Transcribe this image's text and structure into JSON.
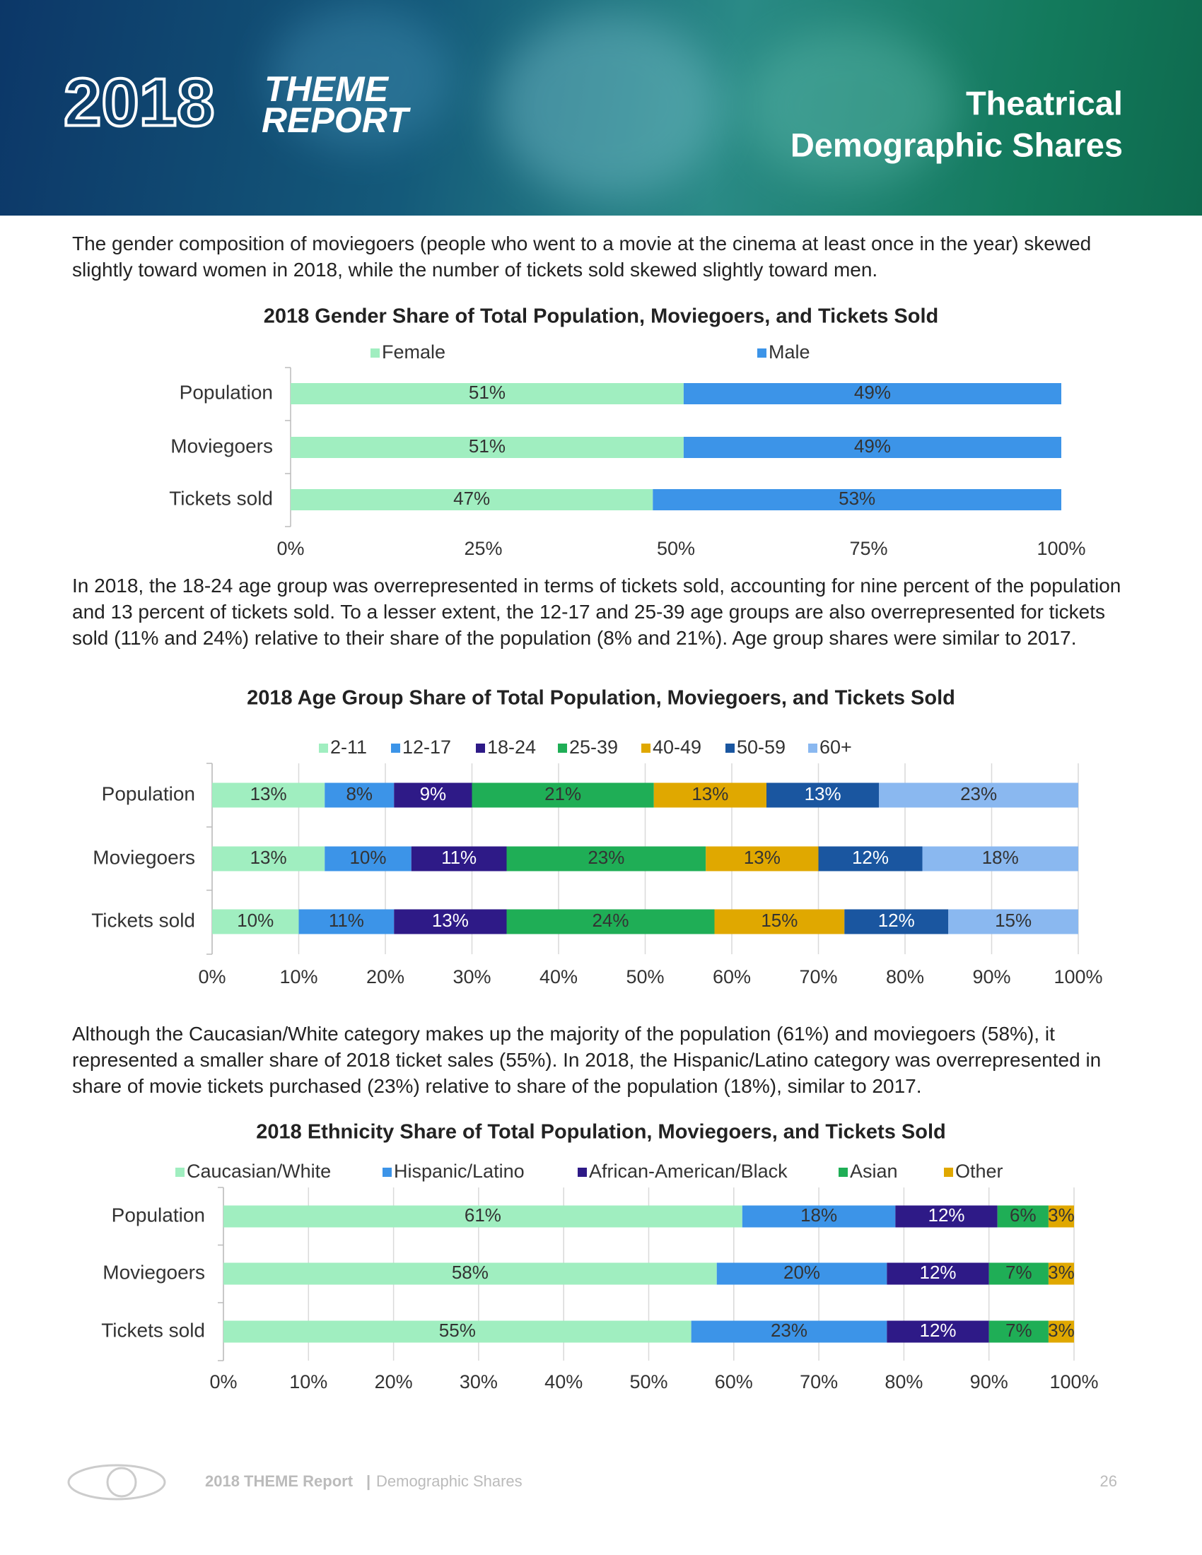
{
  "header": {
    "logo_year": "2018",
    "logo_line1": "THEME",
    "logo_line2": "REPORT",
    "title_lines": [
      "Theatrical",
      "Demographic Shares"
    ]
  },
  "paragraphs": [
    "The gender composition of moviegoers (people who went to a movie at the cinema at least once in the year) skewed slightly toward women in 2018, while the number of tickets sold skewed slightly toward men.",
    "In 2018, the 18-24 age group was overrepresented in terms of tickets sold, accounting for nine percent of the population and 13 percent of tickets sold. To a lesser extent, the 12-17 and 25-39 age groups are also overrepresented for tickets sold (11% and 24%) relative to their share of the population (8% and 21%). Age group shares were similar to 2017.",
    "Although the Caucasian/White category makes up the majority of the population (61%) and moviegoers (58%), it represented a smaller share of 2018 ticket sales (55%). In 2018, the Hispanic/Latino category was overrepresented in share of movie tickets purchased (23%) relative to share of the population (18%), similar to 2017."
  ],
  "chart_data": [
    {
      "type": "bar",
      "title": "2018 Gender Share of Total Population, Moviegoers, and Tickets Sold",
      "categories": [
        "Population",
        "Moviegoers",
        "Tickets sold"
      ],
      "series": [
        {
          "name": "Female",
          "color": "#a0eec0",
          "values": [
            51,
            51,
            47
          ],
          "value_labels": [
            "51%",
            "51%",
            "47%"
          ]
        },
        {
          "name": "Male",
          "color": "#3c94e8",
          "values": [
            49,
            49,
            53
          ],
          "value_labels": [
            "49%",
            "49%",
            "53%"
          ]
        }
      ],
      "xlim": [
        0,
        100
      ],
      "xticks": [
        {
          "value": 0,
          "label": "0%"
        },
        {
          "value": 25,
          "label": "25%"
        },
        {
          "value": 50,
          "label": "50%"
        },
        {
          "value": 75,
          "label": "75%"
        },
        {
          "value": 100,
          "label": "100%"
        }
      ],
      "grid": false,
      "legend": "top"
    },
    {
      "type": "bar",
      "title": "2018 Age Group Share of Total Population, Moviegoers, and Tickets Sold",
      "categories": [
        "Population",
        "Moviegoers",
        "Tickets sold"
      ],
      "series": [
        {
          "name": "2-11",
          "color": "#a0eec0",
          "values": [
            13,
            13,
            10
          ],
          "value_labels": [
            "13%",
            "13%",
            "10%"
          ]
        },
        {
          "name": "12-17",
          "color": "#3c94e8",
          "values": [
            8,
            10,
            11
          ],
          "value_labels": [
            "8%",
            "10%",
            "11%"
          ]
        },
        {
          "name": "18-24",
          "color": "#2e1a87",
          "values": [
            9,
            11,
            13
          ],
          "value_labels": [
            "9%",
            "11%",
            "13%"
          ]
        },
        {
          "name": "25-39",
          "color": "#1fae56",
          "values": [
            21,
            23,
            24
          ],
          "value_labels": [
            "21%",
            "23%",
            "24%"
          ]
        },
        {
          "name": "40-49",
          "color": "#e0a800",
          "values": [
            13,
            13,
            15
          ],
          "value_labels": [
            "13%",
            "13%",
            "15%"
          ]
        },
        {
          "name": "50-59",
          "color": "#1a56a0",
          "values": [
            13,
            12,
            12
          ],
          "value_labels": [
            "13%",
            "12%",
            "12%"
          ]
        },
        {
          "name": "60+",
          "color": "#8ab8f0",
          "values": [
            23,
            18,
            15
          ],
          "value_labels": [
            "23%",
            "18%",
            "15%"
          ]
        }
      ],
      "xlim": [
        0,
        100
      ],
      "xticks": [
        {
          "value": 0,
          "label": "0%"
        },
        {
          "value": 10,
          "label": "10%"
        },
        {
          "value": 20,
          "label": "20%"
        },
        {
          "value": 30,
          "label": "30%"
        },
        {
          "value": 40,
          "label": "40%"
        },
        {
          "value": 50,
          "label": "50%"
        },
        {
          "value": 60,
          "label": "60%"
        },
        {
          "value": 70,
          "label": "70%"
        },
        {
          "value": 80,
          "label": "80%"
        },
        {
          "value": 90,
          "label": "90%"
        },
        {
          "value": 100,
          "label": "100%"
        }
      ],
      "grid": true,
      "legend": "top"
    },
    {
      "type": "bar",
      "title": "2018 Ethnicity Share of Total Population, Moviegoers, and Tickets Sold",
      "categories": [
        "Population",
        "Moviegoers",
        "Tickets sold"
      ],
      "series": [
        {
          "name": "Caucasian/White",
          "color": "#a0eec0",
          "values": [
            61,
            58,
            55
          ],
          "value_labels": [
            "61%",
            "58%",
            "55%"
          ]
        },
        {
          "name": "Hispanic/Latino",
          "color": "#3c94e8",
          "values": [
            18,
            20,
            23
          ],
          "value_labels": [
            "18%",
            "20%",
            "23%"
          ]
        },
        {
          "name": "African-American/Black",
          "color": "#2e1a87",
          "values": [
            12,
            12,
            12
          ],
          "value_labels": [
            "12%",
            "12%",
            "12%"
          ]
        },
        {
          "name": "Asian",
          "color": "#1fae56",
          "values": [
            6,
            7,
            7
          ],
          "value_labels": [
            "6%",
            "7%",
            "7%"
          ]
        },
        {
          "name": "Other",
          "color": "#e0a800",
          "values": [
            3,
            3,
            3
          ],
          "value_labels": [
            "3%",
            "3%",
            "3%"
          ]
        }
      ],
      "xlim": [
        0,
        100
      ],
      "xticks": [
        {
          "value": 0,
          "label": "0%"
        },
        {
          "value": 10,
          "label": "10%"
        },
        {
          "value": 20,
          "label": "20%"
        },
        {
          "value": 30,
          "label": "30%"
        },
        {
          "value": 40,
          "label": "40%"
        },
        {
          "value": 50,
          "label": "50%"
        },
        {
          "value": 60,
          "label": "60%"
        },
        {
          "value": 70,
          "label": "70%"
        },
        {
          "value": 80,
          "label": "80%"
        },
        {
          "value": 90,
          "label": "90%"
        },
        {
          "value": 100,
          "label": "100%"
        }
      ],
      "grid": true,
      "legend": "top"
    }
  ],
  "footer": {
    "report": "2018 THEME Report",
    "separator": "|",
    "section": "Demographic Shares",
    "page": 26
  }
}
